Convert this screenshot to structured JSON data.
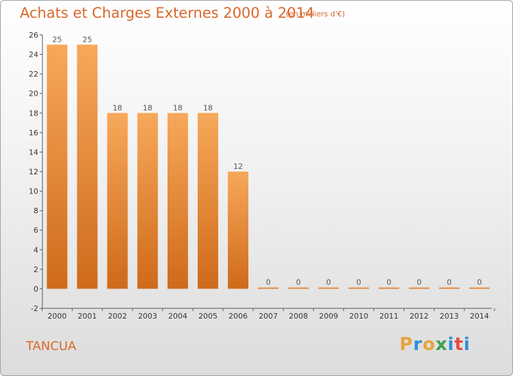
{
  "chart_data": {
    "type": "bar",
    "title": "Achats et Charges Externes 2000 à 2014",
    "subtitle": "(en milliers d'€)",
    "xlabel": "",
    "ylabel": "",
    "categories": [
      "2000",
      "2001",
      "2002",
      "2003",
      "2004",
      "2005",
      "2006",
      "2007",
      "2008",
      "2009",
      "2010",
      "2011",
      "2012",
      "2013",
      "2014"
    ],
    "values": [
      25,
      25,
      18,
      18,
      18,
      18,
      12,
      0,
      0,
      0,
      0,
      0,
      0,
      0,
      0
    ],
    "ylim": [
      -2,
      26
    ],
    "yticks": [
      -2,
      0,
      2,
      4,
      6,
      8,
      10,
      12,
      14,
      16,
      18,
      20,
      22,
      24,
      26
    ],
    "grid": false,
    "bar_color": "#e67e22"
  },
  "commune": "TANCUA",
  "brand": {
    "letters": [
      "P",
      "r",
      "o",
      "x",
      "i",
      "t",
      "i"
    ],
    "colors": [
      "#e8a33c",
      "#2d8fd5",
      "#e8a33c",
      "#3da04a",
      "#2d8fd5",
      "#e84a3c",
      "#2d8fd5"
    ]
  }
}
